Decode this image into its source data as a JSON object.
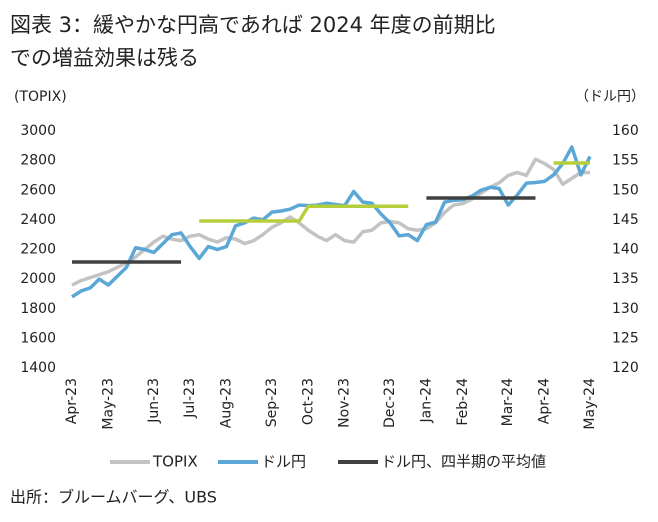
{
  "chart_data": {
    "type": "line",
    "title": [
      "図表 3：緩やかな円高であれば 2024 年度の前期比",
      "での増益効果は残る"
    ],
    "ylabel": "(TOPIX)",
    "y2label": "（ドル円）",
    "source": "出所：ブルームバーグ、UBS",
    "categories": [
      "Apr-23",
      null,
      null,
      null,
      "May-23",
      null,
      null,
      null,
      null,
      "Jun-23",
      null,
      null,
      null,
      "Jul-23",
      null,
      null,
      null,
      "Aug-23",
      null,
      null,
      null,
      null,
      "Sep-23",
      null,
      null,
      null,
      "Oct-23",
      null,
      null,
      null,
      "Nov-23",
      null,
      null,
      null,
      null,
      "Dec-23",
      null,
      null,
      null,
      "Jan-24",
      null,
      null,
      null,
      "Feb-24",
      null,
      null,
      null,
      null,
      "Mar-24",
      null,
      null,
      null,
      "Apr-24",
      null,
      null,
      null,
      null,
      "May-24"
    ],
    "series": [
      {
        "name": "TOPIX",
        "color": "#c3c3c3",
        "values": [
          1960,
          1990,
          2010,
          2030,
          2050,
          2080,
          2110,
          2150,
          2200,
          2250,
          2290,
          2270,
          2260,
          2290,
          2300,
          2270,
          2250,
          2280,
          2270,
          2240,
          2260,
          2300,
          2350,
          2380,
          2420,
          2380,
          2330,
          2290,
          2260,
          2300,
          2260,
          2250,
          2320,
          2330,
          2380,
          2390,
          2380,
          2340,
          2330,
          2340,
          2380,
          2450,
          2500,
          2510,
          2540,
          2580,
          2620,
          2650,
          2700,
          2720,
          2700,
          2810,
          2780,
          2740,
          2640,
          2680,
          2720,
          2720
        ]
      },
      {
        "name": "ドル円",
        "color": "#5ba7d6",
        "axis": "y2",
        "values": [
          132.0,
          133.0,
          133.5,
          135.0,
          134.0,
          135.5,
          137.0,
          140.3,
          140.0,
          139.5,
          141.0,
          142.5,
          142.8,
          140.5,
          138.5,
          140.5,
          140.0,
          140.5,
          144.0,
          144.5,
          145.3,
          145.0,
          146.3,
          146.5,
          146.8,
          147.5,
          147.4,
          147.5,
          147.8,
          147.6,
          147.4,
          149.8,
          148.0,
          147.8,
          146.0,
          144.5,
          142.3,
          142.5,
          141.5,
          144.2,
          144.6,
          148.0,
          148.3,
          148.4,
          149.0,
          150.0,
          150.5,
          150.3,
          147.5,
          149.2,
          151.2,
          151.3,
          151.5,
          152.6,
          154.5,
          157.3,
          152.6,
          155.7
        ]
      },
      {
        "name": "ドル円、四半期の平均値",
        "color": "#404040",
        "axis": "y2",
        "segment_colors": [
          "#404040",
          "#b5cf3c",
          "#404040",
          "#b5cf3c",
          "#404040"
        ],
        "values": [
          137.9,
          137.9,
          137.9,
          137.9,
          137.9,
          137.9,
          137.9,
          137.9,
          137.9,
          137.9,
          137.9,
          137.9,
          137.9,
          null,
          144.8,
          144.8,
          144.8,
          144.8,
          144.8,
          144.8,
          144.8,
          144.8,
          144.8,
          144.8,
          144.8,
          144.8,
          147.3,
          147.3,
          147.3,
          147.3,
          147.3,
          147.3,
          147.3,
          147.3,
          147.3,
          147.3,
          147.3,
          147.3,
          null,
          148.7,
          148.7,
          148.7,
          148.7,
          148.7,
          148.7,
          148.7,
          148.7,
          148.7,
          148.7,
          148.7,
          148.7,
          148.7,
          null,
          154.6,
          154.6,
          154.6,
          154.6,
          154.6
        ]
      }
    ],
    "ylim": [
      1400,
      3000
    ],
    "yticks": [
      1400,
      1600,
      1800,
      2000,
      2200,
      2400,
      2600,
      2800,
      3000
    ],
    "y2lim": [
      120,
      160
    ],
    "y2ticks": [
      120,
      125,
      130,
      135,
      140,
      145,
      150,
      155,
      160
    ],
    "grid": false
  }
}
